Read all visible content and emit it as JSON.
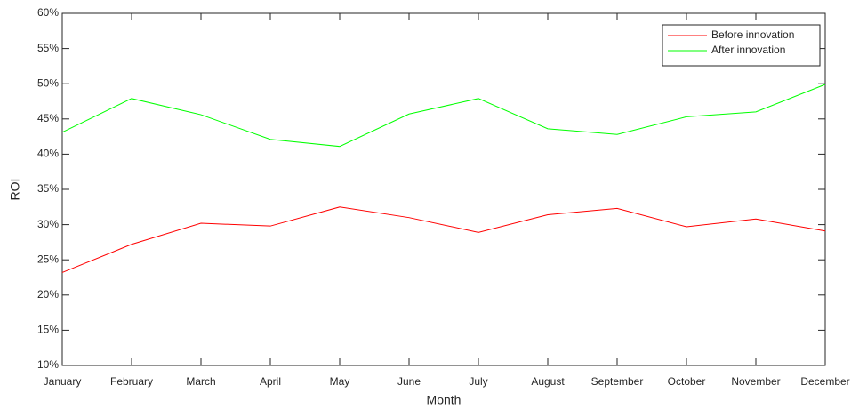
{
  "chart_data": {
    "type": "line",
    "x_label": "Month",
    "y_label": "ROI",
    "categories": [
      "January",
      "February",
      "March",
      "April",
      "May",
      "June",
      "July",
      "August",
      "September",
      "October",
      "November",
      "December"
    ],
    "series": [
      {
        "name": "Before innovation",
        "color": "#ff0000",
        "values": [
          23.2,
          27.2,
          30.2,
          29.8,
          32.5,
          31.0,
          28.9,
          31.4,
          32.3,
          29.7,
          30.8,
          29.1
        ]
      },
      {
        "name": "After innovation",
        "color": "#00ff00",
        "values": [
          43.1,
          47.9,
          45.6,
          42.1,
          41.1,
          45.7,
          47.9,
          43.6,
          42.8,
          45.3,
          46.0,
          49.9
        ]
      }
    ],
    "ylim": [
      10,
      60
    ],
    "yticks": [
      {
        "value": 10,
        "label": "10%"
      },
      {
        "value": 15,
        "label": "15%"
      },
      {
        "value": 20,
        "label": "20%"
      },
      {
        "value": 25,
        "label": "25%"
      },
      {
        "value": 30,
        "label": "30%"
      },
      {
        "value": 35,
        "label": "35%"
      },
      {
        "value": 40,
        "label": "40%"
      },
      {
        "value": 45,
        "label": "45%"
      },
      {
        "value": 50,
        "label": "50%"
      },
      {
        "value": 55,
        "label": "55%"
      },
      {
        "value": 60,
        "label": "60%"
      }
    ],
    "grid": false,
    "legend": "upper right"
  }
}
